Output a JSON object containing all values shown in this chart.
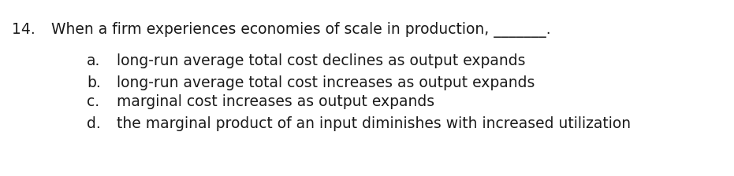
{
  "question_number": "14.",
  "question_text": "When a firm experiences economies of scale in production, _______.",
  "options": [
    {
      "label": "a.",
      "text": "long-run average total cost declines as output expands"
    },
    {
      "label": "b.",
      "text": "long-run average total cost increases as output expands"
    },
    {
      "label": "c.",
      "text": "marginal cost increases as output expands"
    },
    {
      "label": "d.",
      "text": "the marginal product of an input diminishes with increased utilization"
    }
  ],
  "background_color": "#ffffff",
  "text_color": "#1a1a1a",
  "font_size": 13.5,
  "fig_width": 9.31,
  "fig_height": 2.24,
  "dpi": 100
}
